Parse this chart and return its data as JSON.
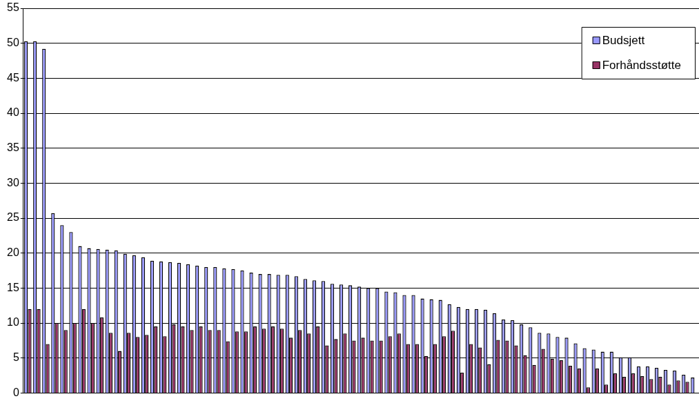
{
  "chart_data": {
    "type": "bar",
    "categories": [
      null,
      null,
      null,
      null,
      null,
      null,
      null,
      null,
      null,
      null,
      null,
      null,
      null,
      null,
      null,
      null,
      null,
      null,
      null,
      null,
      null,
      null,
      null,
      null,
      null,
      null,
      null,
      null,
      null,
      null,
      null,
      null,
      null,
      null,
      null,
      null,
      null,
      null,
      null,
      null,
      null,
      null,
      null,
      null,
      null,
      null,
      null,
      null,
      null,
      null,
      null,
      null,
      null,
      null,
      null,
      null,
      null,
      null,
      null,
      null,
      null,
      null,
      null,
      null,
      null,
      null,
      null,
      null,
      null,
      null,
      null,
      null,
      null,
      null,
      null
    ],
    "series": [
      {
        "name": "Budsjett",
        "color": "#9999ff",
        "values": [
          50.3,
          50.3,
          49.2,
          25.7,
          24.0,
          23.0,
          21.0,
          20.7,
          20.6,
          20.5,
          20.4,
          19.9,
          19.7,
          19.4,
          18.9,
          18.8,
          18.7,
          18.6,
          18.4,
          18.2,
          18.0,
          18.0,
          17.8,
          17.7,
          17.5,
          17.2,
          17.0,
          17.0,
          16.9,
          16.9,
          16.7,
          16.3,
          16.1,
          16.0,
          15.6,
          15.5,
          15.4,
          15.2,
          15.0,
          15.0,
          14.5,
          14.4,
          14.0,
          14.0,
          13.5,
          13.4,
          13.3,
          12.7,
          12.3,
          12.0,
          12.0,
          11.9,
          11.4,
          10.5,
          10.4,
          9.8,
          9.4,
          8.6,
          8.5,
          8.0,
          7.9,
          7.1,
          6.4,
          6.2,
          5.9,
          5.9,
          5.1,
          5.1,
          3.8,
          3.8,
          3.6,
          3.3,
          3.2,
          2.6,
          2.2
        ]
      },
      {
        "name": "Forhåndsstøtte",
        "color": "#993366",
        "values": [
          12.0,
          12.0,
          7.0,
          10.0,
          9.0,
          10.0,
          12.0,
          10.0,
          10.8,
          8.6,
          6.0,
          8.6,
          8.0,
          8.3,
          9.5,
          8.1,
          9.8,
          9.5,
          9.0,
          9.5,
          9.0,
          9.0,
          7.4,
          8.8,
          8.8,
          9.5,
          9.2,
          9.5,
          9.2,
          7.9,
          9.0,
          8.5,
          9.5,
          6.8,
          7.7,
          8.5,
          7.5,
          7.9,
          7.5,
          7.5,
          8.1,
          8.5,
          7.0,
          7.0,
          5.3,
          7.0,
          8.1,
          8.9,
          2.9,
          7.0,
          6.5,
          4.1,
          7.6,
          7.5,
          6.8,
          5.4,
          4.0,
          6.3,
          4.9,
          4.7,
          3.9,
          3.5,
          0.8,
          3.5,
          1.2,
          2.8,
          2.3,
          2.8,
          2.4,
          2.0,
          2.3,
          1.2,
          1.8,
          1.6,
          null
        ]
      }
    ],
    "ylim": [
      0,
      55
    ],
    "yticks": [
      0,
      5,
      10,
      15,
      20,
      25,
      30,
      35,
      40,
      45,
      50,
      55
    ],
    "grid": "y",
    "legend": "top right",
    "tick_labels": "y"
  }
}
